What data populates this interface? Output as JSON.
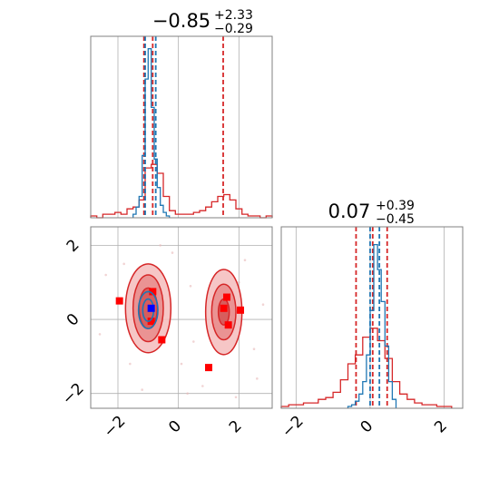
{
  "colors": {
    "series_a": "#d62728",
    "series_b": "#1f77b4",
    "marker_red": "#ff0000",
    "marker_blue": "#0000ff",
    "grid": "#b0b0b0",
    "frame": "#808080"
  },
  "chart_data": [
    {
      "type": "histogram",
      "panel": "top-left",
      "title": {
        "median": "−0.85",
        "upper": "+2.33",
        "lower": "−0.29"
      },
      "xlim": [
        -2.9,
        3.1
      ],
      "grid": true,
      "series": [
        {
          "color": "#d62728",
          "bin_edges": [
            -2.9,
            -2.7,
            -2.5,
            -2.3,
            -2.1,
            -1.9,
            -1.7,
            -1.5,
            -1.3,
            -1.1,
            -0.9,
            -0.7,
            -0.5,
            -0.3,
            -0.1,
            0.1,
            0.3,
            0.5,
            0.7,
            0.9,
            1.1,
            1.3,
            1.5,
            1.7,
            1.9,
            2.1,
            2.3,
            2.5,
            2.7,
            2.9,
            3.1
          ],
          "counts": [
            0.01,
            0,
            0.02,
            0.02,
            0.03,
            0.02,
            0.05,
            0.06,
            0.1,
            0.28,
            0.3,
            0.25,
            0.12,
            0.04,
            0.02,
            0.02,
            0.02,
            0.03,
            0.04,
            0.06,
            0.09,
            0.12,
            0.13,
            0.1,
            0.05,
            0.02,
            0.01,
            0.01,
            0,
            0.01
          ],
          "quantile_lines": [
            -1.14,
            -0.85,
            1.48
          ]
        },
        {
          "color": "#1f77b4",
          "bin_edges": [
            -1.5,
            -1.4,
            -1.3,
            -1.2,
            -1.1,
            -1.0,
            -0.9,
            -0.8,
            -0.7,
            -0.6,
            -0.5,
            -0.4,
            -0.3
          ],
          "counts": [
            0.02,
            0.06,
            0.12,
            0.35,
            0.78,
            0.95,
            0.62,
            0.33,
            0.17,
            0.07,
            0.03,
            0.01
          ],
          "quantile_lines": [
            -1.1,
            -0.75
          ]
        }
      ],
      "ylim": [
        0,
        1.02
      ]
    },
    {
      "type": "contour",
      "panel": "bottom-left",
      "xlim": [
        -2.9,
        3.1
      ],
      "ylim": [
        -2.4,
        2.5
      ],
      "xticks": [
        "−2",
        "0",
        "2"
      ],
      "yticks": [
        "−2",
        "0",
        "2"
      ],
      "grid": true,
      "series": [
        {
          "color": "#d62728",
          "modes": [
            {
              "cx": -1.0,
              "cy": 0.3,
              "levels": [
                [
                  0.75,
                  1.2
                ],
                [
                  0.5,
                  0.9
                ],
                [
                  0.3,
                  0.55
                ]
              ]
            },
            {
              "cx": 1.5,
              "cy": 0.2,
              "levels": [
                [
                  0.6,
                  1.15
                ],
                [
                  0.4,
                  0.75
                ],
                [
                  0.18,
                  0.35
                ]
              ]
            }
          ],
          "markers": [
            {
              "x": -1.95,
              "y": 0.5
            },
            {
              "x": -0.85,
              "y": 0.75
            },
            {
              "x": -0.55,
              "y": -0.55
            },
            {
              "x": -0.9,
              "y": -0.05
            },
            {
              "x": 1.0,
              "y": -1.3
            },
            {
              "x": 1.6,
              "y": 0.6
            },
            {
              "x": 1.5,
              "y": 0.3
            },
            {
              "x": 2.05,
              "y": 0.25
            },
            {
              "x": 1.65,
              "y": -0.15
            }
          ]
        },
        {
          "color": "#1f77b4",
          "modes": [
            {
              "cx": -1.0,
              "cy": 0.25,
              "levels": [
                [
                  0.32,
                  0.5
                ],
                [
                  0.18,
                  0.3
                ]
              ]
            }
          ],
          "markers": [
            {
              "x": -0.9,
              "y": 0.3
            }
          ]
        }
      ]
    },
    {
      "type": "histogram",
      "panel": "bottom-right",
      "title": {
        "median": "0.07",
        "upper": "+0.39",
        "lower": "−0.45"
      },
      "xlim": [
        -2.4,
        2.5
      ],
      "xticks": [
        "−2",
        "0",
        "2"
      ],
      "grid": true,
      "series": [
        {
          "color": "#d62728",
          "bin_edges": [
            -2.4,
            -2.2,
            -2.0,
            -1.8,
            -1.6,
            -1.4,
            -1.2,
            -1.0,
            -0.8,
            -0.6,
            -0.4,
            -0.2,
            0.0,
            0.2,
            0.4,
            0.6,
            0.8,
            1.0,
            1.2,
            1.4,
            1.6,
            1.8,
            2.0,
            2.2
          ],
          "counts": [
            0.01,
            0.02,
            0.02,
            0.03,
            0.03,
            0.05,
            0.06,
            0.09,
            0.16,
            0.25,
            0.3,
            0.4,
            0.45,
            0.38,
            0.28,
            0.15,
            0.08,
            0.05,
            0.03,
            0.02,
            0.02,
            0.01,
            0.01
          ],
          "quantile_lines": [
            -0.38,
            0.07,
            0.46
          ]
        },
        {
          "color": "#1f77b4",
          "bin_edges": [
            -0.6,
            -0.5,
            -0.4,
            -0.3,
            -0.2,
            -0.1,
            0.0,
            0.1,
            0.2,
            0.3,
            0.4,
            0.5,
            0.6,
            0.7
          ],
          "counts": [
            0.01,
            0.02,
            0.04,
            0.08,
            0.15,
            0.3,
            0.55,
            0.92,
            0.78,
            0.6,
            0.35,
            0.15,
            0.05
          ],
          "quantile_lines": [
            0.0,
            0.25
          ]
        }
      ],
      "ylim": [
        0,
        1.02
      ]
    }
  ]
}
